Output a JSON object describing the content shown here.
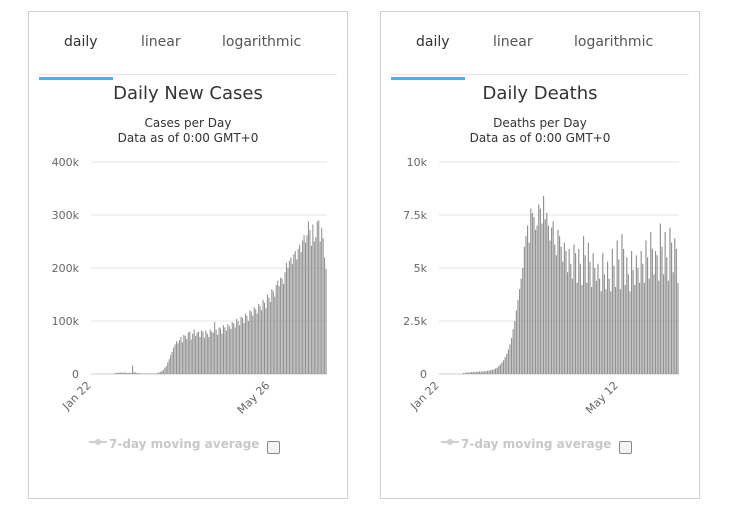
{
  "chart_data": [
    {
      "type": "bar",
      "tabs": [
        "daily",
        "linear",
        "logarithmic"
      ],
      "active_tab": "daily",
      "title": "Daily New Cases",
      "subtitle": "Cases per Day",
      "note": "Data as of 0:00 GMT+0",
      "ylim": [
        0,
        400000
      ],
      "yticks": [
        0,
        100000,
        200000,
        300000,
        400000
      ],
      "ytick_labels": [
        "0",
        "100k",
        "200k",
        "300k",
        "400k"
      ],
      "xtick_labels": [
        "Jan 22",
        "May 26"
      ],
      "legend": "7-day moving average",
      "color": "#919191",
      "values": [
        0,
        0,
        0,
        0,
        0,
        0,
        0,
        0,
        0,
        0,
        0,
        0,
        0,
        0,
        0,
        0,
        1500,
        2000,
        2500,
        2500,
        3000,
        2500,
        2500,
        3000,
        2000,
        2000,
        2500,
        2000,
        16000,
        4000,
        2500,
        2000,
        1500,
        1500,
        1000,
        1000,
        1000,
        1000,
        1000,
        1000,
        1000,
        1000,
        1000,
        1000,
        1000,
        2000,
        3000,
        4000,
        6000,
        8000,
        12000,
        15000,
        22000,
        28000,
        36000,
        42000,
        50000,
        56000,
        62000,
        58000,
        64000,
        70000,
        60000,
        74000,
        72000,
        66000,
        78000,
        80000,
        65000,
        76000,
        84000,
        72000,
        78000,
        80000,
        70000,
        82000,
        80000,
        68000,
        82000,
        76000,
        70000,
        84000,
        80000,
        78000,
        98000,
        84000,
        74000,
        88000,
        86000,
        76000,
        92000,
        88000,
        82000,
        94000,
        90000,
        85000,
        98000,
        96000,
        88000,
        104000,
        100000,
        92000,
        108000,
        106000,
        96000,
        114000,
        110000,
        100000,
        120000,
        118000,
        110000,
        126000,
        122000,
        114000,
        132000,
        128000,
        120000,
        140000,
        134000,
        124000,
        150000,
        144000,
        136000,
        160000,
        156000,
        146000,
        168000,
        176000,
        166000,
        182000,
        180000,
        170000,
        192000,
        210000,
        200000,
        214000,
        220000,
        208000,
        226000,
        232000,
        216000,
        236000,
        244000,
        230000,
        252000,
        262000,
        248000,
        262000,
        288000,
        272000,
        242000,
        282000,
        250000,
        258000,
        288000,
        290000,
        250000,
        276000,
        256000,
        220000,
        198000
      ]
    },
    {
      "type": "bar",
      "tabs": [
        "daily",
        "linear",
        "logarithmic"
      ],
      "active_tab": "daily",
      "title": "Daily Deaths",
      "subtitle": "Deaths per Day",
      "note": "Data as of 0:00 GMT+0",
      "ylim": [
        0,
        10000
      ],
      "yticks": [
        0,
        2500,
        5000,
        7500,
        10000
      ],
      "ytick_labels": [
        "0",
        "2.5k",
        "5k",
        "7.5k",
        "10k"
      ],
      "xtick_labels": [
        "Jan 22",
        "May 12"
      ],
      "legend": "7-day moving average",
      "color": "#919191",
      "values": [
        0,
        0,
        0,
        0,
        0,
        0,
        0,
        0,
        0,
        0,
        0,
        0,
        0,
        0,
        0,
        50,
        60,
        60,
        70,
        80,
        90,
        100,
        90,
        100,
        110,
        120,
        100,
        130,
        120,
        140,
        150,
        160,
        180,
        200,
        220,
        260,
        300,
        380,
        450,
        550,
        650,
        800,
        950,
        1150,
        1400,
        1700,
        2100,
        2500,
        3000,
        3500,
        4000,
        4500,
        5000,
        6000,
        6500,
        7000,
        6200,
        7800,
        7600,
        7400,
        6800,
        7000,
        8000,
        7800,
        7100,
        8400,
        7300,
        7600,
        7000,
        6300,
        6900,
        7200,
        6100,
        5600,
        6800,
        6500,
        6000,
        5300,
        6200,
        5800,
        4800,
        5900,
        5200,
        4500,
        6100,
        5700,
        4300,
        5900,
        5200,
        4200,
        6500,
        5600,
        4300,
        6200,
        5300,
        4100,
        5700,
        5000,
        4400,
        5200,
        4500,
        3900,
        5700,
        4700,
        4000,
        5300,
        4500,
        3900,
        5900,
        5100,
        4100,
        6300,
        5400,
        4000,
        6600,
        5900,
        4200,
        5500,
        4700,
        3900,
        5800,
        4900,
        4200,
        5600,
        5000,
        4300,
        5800,
        5200,
        4300,
        6300,
        5500,
        4500,
        6700,
        5900,
        4700,
        5800,
        5600,
        4400,
        7100,
        6000,
        4700,
        6700,
        5500,
        4400,
        6900,
        6200,
        4800,
        6400,
        5900,
        4300
      ]
    }
  ]
}
